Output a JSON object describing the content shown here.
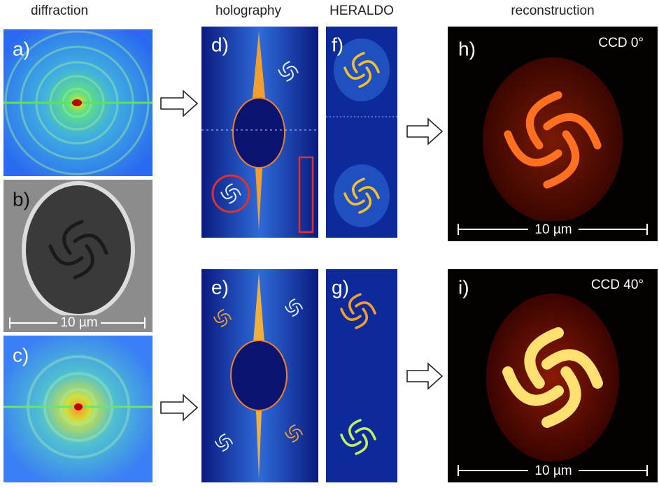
{
  "headers": [
    "diffraction",
    "holography",
    "HERALDO",
    "reconstruction"
  ],
  "panels": [
    {
      "label": "a)"
    },
    {
      "label": "b)",
      "scale_bar": "10 µm"
    },
    {
      "label": "c)"
    },
    {
      "label": "d)"
    },
    {
      "label": "e)"
    },
    {
      "label": "f)"
    },
    {
      "label": "g)"
    },
    {
      "label": "h)",
      "detector": "CCD 0°",
      "scale_bar": "10 µm"
    },
    {
      "label": "i)",
      "detector": "CCD 40°",
      "scale_bar": "10 µm"
    }
  ]
}
